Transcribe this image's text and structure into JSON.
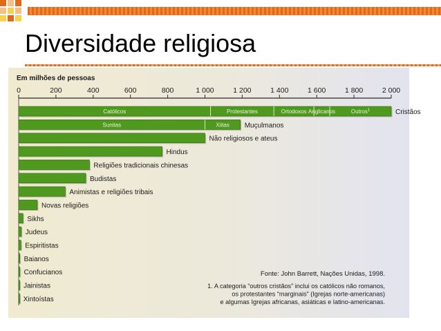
{
  "slide": {
    "title": "Diversidade religiosa"
  },
  "colors": {
    "bar": "#4f9a1e",
    "bar_dark": "#2f6a0e",
    "accent": "#e06a1a",
    "red": "#d0381e"
  },
  "chart_data": {
    "type": "bar",
    "orientation": "horizontal",
    "axis_title": "Em milhões de pessoas",
    "xlim": [
      0,
      2000
    ],
    "ticks": [
      "0",
      "200",
      "400",
      "600",
      "800",
      "1 000",
      "1 200",
      "1 400",
      "1 600",
      "1 800",
      "2 000"
    ],
    "grid": false,
    "categories": [
      "Cristãos",
      "Muçulmanos",
      "Não religiosos e ateus",
      "Hindus",
      "Religiões tradicionais chinesas",
      "Budistas",
      "Animistas e religiões tribais",
      "Novas religiões",
      "Sikhs",
      "Judeus",
      "Espiritistas",
      "Baianos",
      "Confucianos",
      "Jainistas",
      "Xintoístas"
    ],
    "values": [
      2000,
      1190,
      1000,
      770,
      380,
      360,
      250,
      100,
      23,
      14,
      12,
      6,
      6,
      4,
      3
    ],
    "segments": [
      {
        "category": "Cristãos",
        "parts": [
          {
            "label": "Católicos",
            "value": 1030
          },
          {
            "label": "Protestantes",
            "value": 340
          },
          {
            "label": "Ortodoxos",
            "value": 215
          },
          {
            "label": "Anglicanos",
            "value": 85
          },
          {
            "label": "Outros",
            "label_sup": "1",
            "value": 330
          }
        ]
      },
      {
        "category": "Muçulmanos",
        "parts": [
          {
            "label": "Sunitas",
            "value": 1000
          },
          {
            "label": "Xiitas",
            "value": 190
          }
        ]
      }
    ],
    "source": "Fonte: John Barrett, Nações Unidas, 1998.",
    "footnote": [
      "1. A categoria “outros cristãos” inclui os católicos não romanos,",
      "os protestantes “marginais” (Igrejas norte-americanas)",
      "e algumas Igrejas africanas, asiáticas e latino-americanas."
    ]
  }
}
